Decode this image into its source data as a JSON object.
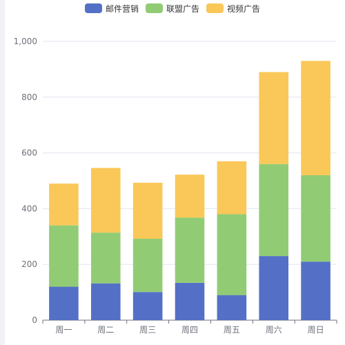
{
  "chart_data": {
    "type": "bar",
    "stacked": true,
    "categories": [
      "周一",
      "周二",
      "周三",
      "周四",
      "周五",
      "周六",
      "周日"
    ],
    "series": [
      {
        "name": "邮件营销",
        "color": "#5470c6",
        "values": [
          120,
          132,
          101,
          134,
          90,
          230,
          210
        ]
      },
      {
        "name": "联盟广告",
        "color": "#91cc75",
        "values": [
          220,
          182,
          191,
          234,
          290,
          330,
          310
        ]
      },
      {
        "name": "视频广告",
        "color": "#fac858",
        "values": [
          150,
          232,
          201,
          154,
          190,
          330,
          410
        ]
      }
    ],
    "yticks": [
      "0",
      "200",
      "400",
      "600",
      "800",
      "1,000"
    ],
    "ylim": [
      0,
      1000
    ],
    "legend_position": "top-center",
    "grid": true
  }
}
